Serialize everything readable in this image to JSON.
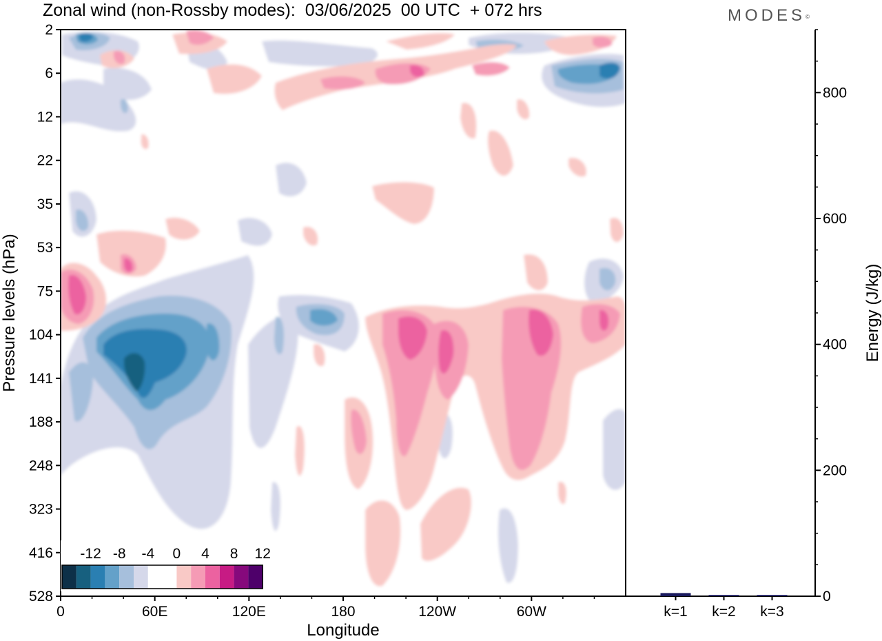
{
  "header": {
    "title": "Zonal wind (non-Rossby modes):  03/06/2025  00 UTC  + 072 hrs",
    "brand": "MODES",
    "brand_mark": "©"
  },
  "chart_data": [
    {
      "type": "heatmap",
      "title": "Zonal wind (non-Rossby modes):  03/06/2025  00 UTC  + 072 hrs",
      "xlabel": "Longitude",
      "ylabel": "Pressure levels (hPa)",
      "x_ticks": [
        "0",
        "60E",
        "120E",
        "180",
        "120W",
        "60W"
      ],
      "x_tick_degrees": [
        0,
        60,
        120,
        180,
        240,
        300
      ],
      "xlim_degrees": [
        0,
        360
      ],
      "y_ticks": [
        "2",
        "6",
        "12",
        "22",
        "35",
        "53",
        "75",
        "104",
        "141",
        "188",
        "248",
        "323",
        "416",
        "528"
      ],
      "y_scale": "pressure-level index (top to bottom)",
      "colorbar": {
        "labels": [
          "-12",
          "-8",
          "-4",
          "0",
          "4",
          "8",
          "12"
        ],
        "levels": [
          -16,
          -14,
          -12,
          -10,
          -8,
          -6,
          -4,
          -2,
          0,
          2,
          4,
          6,
          8,
          10,
          12,
          14,
          16
        ],
        "colors": [
          "#0d3048",
          "#17607f",
          "#2a7fb2",
          "#64a1c9",
          "#a6bfdc",
          "#d5d8ea",
          "#ffffff",
          "#ffffff",
          "#f9c9c6",
          "#f59bb5",
          "#ec62a0",
          "#c71b84",
          "#86097c",
          "#4e006a"
        ]
      },
      "features": [
        {
          "sign": "negative",
          "lon": [
            30,
            80
          ],
          "p": [
            "104",
            "188"
          ],
          "min": -10
        },
        {
          "sign": "negative",
          "lon": [
            150,
            175
          ],
          "p": [
            "75",
            "104"
          ],
          "min": -6
        },
        {
          "sign": "negative",
          "lon": [
            310,
            360
          ],
          "p": [
            "2",
            "6"
          ],
          "min": -8
        },
        {
          "sign": "positive",
          "lon": [
            210,
            240
          ],
          "p": [
            "104",
            "188"
          ],
          "max": 8
        },
        {
          "sign": "positive",
          "lon": [
            290,
            315
          ],
          "p": [
            "104",
            "188"
          ],
          "max": 8
        },
        {
          "sign": "positive",
          "lon": [
            5,
            20
          ],
          "p": [
            "53",
            "104"
          ],
          "max": 6
        },
        {
          "sign": "positive",
          "lon": [
            140,
            260
          ],
          "p": [
            "2",
            "12"
          ],
          "max": 6
        }
      ]
    },
    {
      "type": "bar",
      "categories": [
        "k=1",
        "k=2",
        "k=3"
      ],
      "values": [
        5,
        2,
        2
      ],
      "ylabel": "Energy (J/kg)",
      "ylim": [
        0,
        900
      ],
      "y_ticks": [
        0,
        200,
        400,
        600,
        800
      ],
      "color": "#1a1a5e"
    }
  ]
}
